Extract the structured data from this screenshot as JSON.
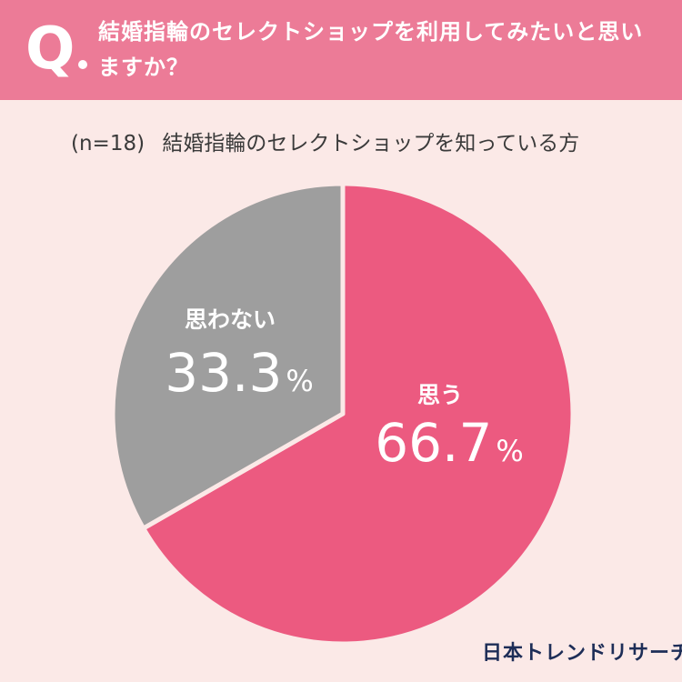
{
  "header": {
    "q_mark": "Q",
    "question": "結婚指輪のセレクトショップを利用してみたいと思いますか？"
  },
  "subtitle": {
    "sample": "(n=18)",
    "text": "結婚指輪のセレクトショップを知っている方"
  },
  "chart_data": {
    "type": "pie",
    "slices": [
      {
        "label": "思う",
        "value": 66.7,
        "value_label": "66.7",
        "unit": "%",
        "color": "#ec5a80"
      },
      {
        "label": "思わない",
        "value": 33.3,
        "value_label": "33.3",
        "unit": "%",
        "color": "#9e9e9e"
      }
    ],
    "start_angle": "12 o'clock",
    "direction": "clockwise"
  },
  "logo": "日本トレンドリサーチ"
}
